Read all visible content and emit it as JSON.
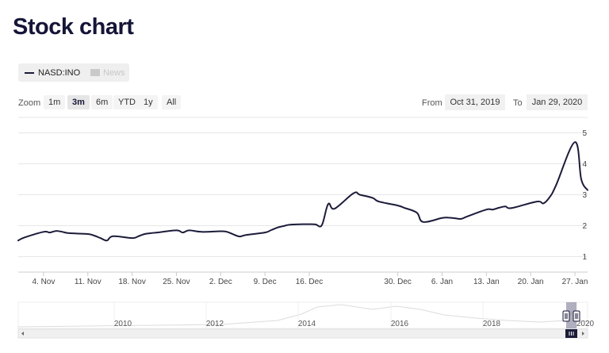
{
  "page": {
    "title": "Stock chart"
  },
  "legend": [
    {
      "label": "NASD:INO",
      "active": true
    },
    {
      "label": "News",
      "active": false
    }
  ],
  "zoom": {
    "label": "Zoom",
    "buttons": [
      {
        "label": "1m",
        "active": false
      },
      {
        "label": "3m",
        "active": true
      },
      {
        "label": "6m",
        "active": false
      },
      {
        "label": "YTD",
        "active": false
      },
      {
        "label": "1y",
        "active": false
      },
      {
        "label": "All",
        "active": false
      }
    ]
  },
  "range": {
    "from_label": "From",
    "from_value": "Oct 31, 2019",
    "to_label": "To",
    "to_value": "Jan 29, 2020"
  },
  "colors": {
    "line": "#1b1b3a",
    "grid": "#e6e6e6",
    "navigator_mask": "#6d6d8a"
  },
  "chart_data": {
    "type": "line",
    "title": "",
    "series": [
      {
        "name": "NASD:INO",
        "x": [
          "2019-10-31",
          "2019-11-01",
          "2019-11-04",
          "2019-11-05",
          "2019-11-06",
          "2019-11-07",
          "2019-11-08",
          "2019-11-11",
          "2019-11-12",
          "2019-11-13",
          "2019-11-14",
          "2019-11-15",
          "2019-11-18",
          "2019-11-19",
          "2019-11-20",
          "2019-11-21",
          "2019-11-22",
          "2019-11-25",
          "2019-11-26",
          "2019-11-27",
          "2019-11-29",
          "2019-12-02",
          "2019-12-03",
          "2019-12-04",
          "2019-12-05",
          "2019-12-06",
          "2019-12-09",
          "2019-12-10",
          "2019-12-11",
          "2019-12-12",
          "2019-12-13",
          "2019-12-16",
          "2019-12-17",
          "2019-12-18",
          "2019-12-19",
          "2019-12-20",
          "2019-12-23",
          "2019-12-24",
          "2019-12-26",
          "2019-12-27",
          "2019-12-30",
          "2019-12-31",
          "2020-01-02",
          "2020-01-03",
          "2020-01-06",
          "2020-01-07",
          "2020-01-08",
          "2020-01-09",
          "2020-01-10",
          "2020-01-13",
          "2020-01-14",
          "2020-01-15",
          "2020-01-16",
          "2020-01-17",
          "2020-01-21",
          "2020-01-22",
          "2020-01-23",
          "2020-01-24",
          "2020-01-27",
          "2020-01-28",
          "2020-01-29"
        ],
        "y": [
          1.52,
          1.62,
          1.8,
          1.78,
          1.83,
          1.8,
          1.76,
          1.73,
          1.68,
          1.6,
          1.52,
          1.66,
          1.6,
          1.66,
          1.73,
          1.76,
          1.78,
          1.85,
          1.78,
          1.85,
          1.8,
          1.82,
          1.8,
          1.72,
          1.65,
          1.7,
          1.78,
          1.86,
          1.94,
          1.99,
          2.03,
          2.05,
          2.04,
          2.02,
          2.7,
          2.55,
          3.05,
          3.0,
          2.9,
          2.78,
          2.65,
          2.58,
          2.42,
          2.12,
          2.25,
          2.26,
          2.24,
          2.22,
          2.3,
          2.52,
          2.52,
          2.58,
          2.62,
          2.57,
          2.78,
          2.72,
          2.92,
          3.3,
          4.7,
          3.5,
          3.15
        ]
      }
    ],
    "x_ticks": [
      "4. Nov",
      "11. Nov",
      "18. Nov",
      "25. Nov",
      "2. Dec",
      "9. Dec",
      "16. Dec",
      "30. Dec",
      "6. Jan",
      "13. Jan",
      "20. Jan",
      "27. Jan"
    ],
    "y_ticks": [
      1,
      2,
      3,
      4,
      5
    ],
    "ylim": [
      0.5,
      5.5
    ],
    "grid": true,
    "y_axis_side": "right",
    "navigator": {
      "year_labels": [
        "2010",
        "2012",
        "2014",
        "2016",
        "2018",
        "2020"
      ],
      "selected_range": "Oct 31, 2019 – Jan 29, 2020"
    }
  }
}
